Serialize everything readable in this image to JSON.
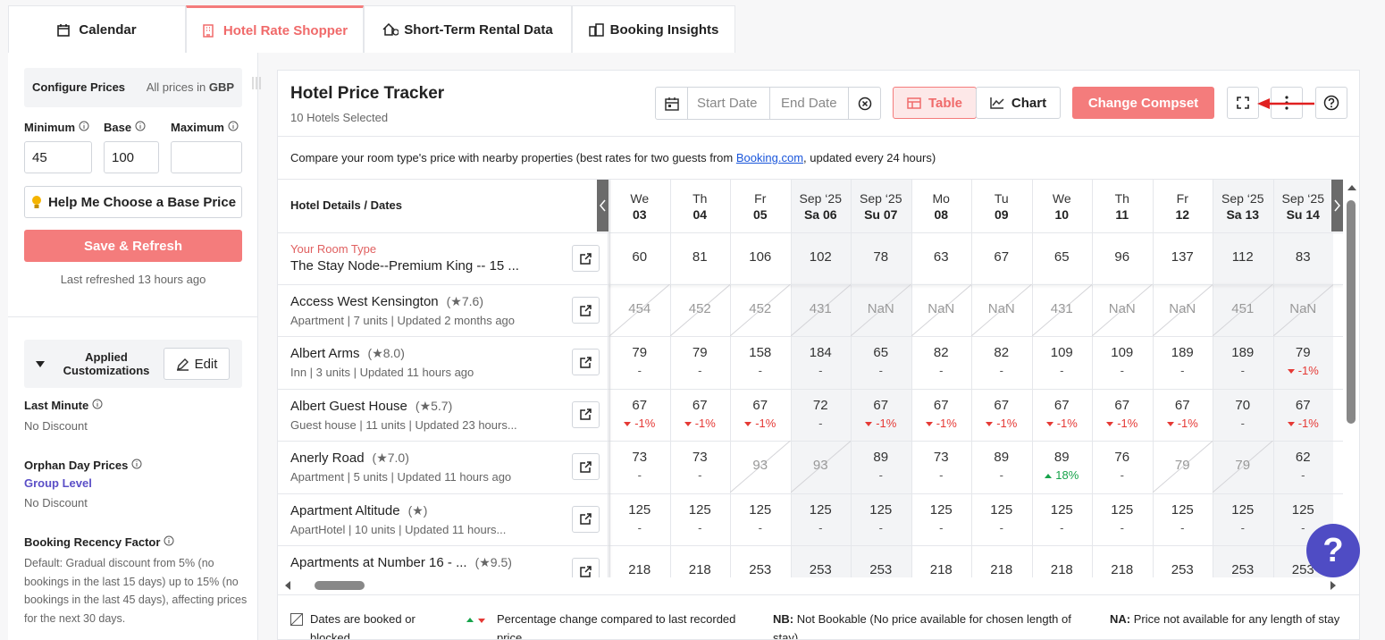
{
  "tabs": [
    "Calendar",
    "Hotel Rate Shopper",
    "Short-Term Rental Data",
    "Booking Insights"
  ],
  "sidebar": {
    "configure_title": "Configure Prices",
    "currency_prefix": "All prices in",
    "currency": "GBP",
    "fields": [
      {
        "label": "Minimum",
        "value": "45"
      },
      {
        "label": "Base",
        "value": "100"
      },
      {
        "label": "Maximum"
      }
    ],
    "help_button": "Help Me Choose a Base Price",
    "save_button": "Save & Refresh",
    "last_refreshed": "Last refreshed 13 hours ago",
    "customizations_title": "Applied Customizations",
    "edit_button": "Edit",
    "last_minute": {
      "title": "Last Minute",
      "value": "No Discount"
    },
    "orphan": {
      "title": "Orphan Day Prices",
      "level": "Group Level",
      "value": "No Discount"
    },
    "recency": {
      "title": "Booking Recency Factor",
      "text": "Default: Gradual discount from 5% (no bookings in the last 15 days) up to 15% (no bookings in the last 45 days), affecting prices for the next 30 days."
    }
  },
  "header": {
    "title": "Hotel Price Tracker",
    "subtitle": "10 Hotels Selected",
    "start_date": "Start Date",
    "end_date": "End Date",
    "table_button": "Table",
    "chart_button": "Chart",
    "compset_button": "Change Compset"
  },
  "description": {
    "before": "Compare your room type's price with nearby properties (best rates for two guests from",
    "link": "Booking.com",
    "after": ", updated every 24 hours)"
  },
  "table": {
    "corner": "Hotel Details / Dates",
    "columns": [
      {
        "top": "We",
        "bottom": "03",
        "weekend": false
      },
      {
        "top": "Th",
        "bottom": "04",
        "weekend": false
      },
      {
        "top": "Fr",
        "bottom": "05",
        "weekend": false
      },
      {
        "top": "Sep ‘25",
        "bottom": "Sa 06",
        "weekend": true
      },
      {
        "top": "Sep ‘25",
        "bottom": "Su 07",
        "weekend": true
      },
      {
        "top": "Mo",
        "bottom": "08",
        "weekend": false
      },
      {
        "top": "Tu",
        "bottom": "09",
        "weekend": false
      },
      {
        "top": "We",
        "bottom": "10",
        "weekend": false
      },
      {
        "top": "Th",
        "bottom": "11",
        "weekend": false
      },
      {
        "top": "Fr",
        "bottom": "12",
        "weekend": false
      },
      {
        "top": "Sep ‘25",
        "bottom": "Sa 13",
        "weekend": true
      },
      {
        "top": "Sep ‘25",
        "bottom": "Su 14",
        "weekend": true
      }
    ],
    "own": {
      "label": "Your Room Type",
      "name": "The Stay Node--Premium King -- 15 ...",
      "values": [
        "60",
        "81",
        "106",
        "102",
        "78",
        "63",
        "67",
        "65",
        "96",
        "137",
        "112",
        "83"
      ]
    },
    "hotels": [
      {
        "name": "Access West Kensington",
        "rating": "(★7.6)",
        "meta": "Apartment | 7 units | Updated 2 months ago",
        "cells": [
          {
            "value": "454",
            "booked": true
          },
          {
            "value": "452",
            "booked": true
          },
          {
            "value": "452",
            "booked": true
          },
          {
            "value": "431",
            "booked": true
          },
          {
            "value": "NaN",
            "booked": true
          },
          {
            "value": "NaN",
            "booked": true
          },
          {
            "value": "NaN",
            "booked": true
          },
          {
            "value": "431",
            "booked": true
          },
          {
            "value": "NaN",
            "booked": true
          },
          {
            "value": "NaN",
            "booked": true
          },
          {
            "value": "451",
            "booked": true
          },
          {
            "value": "NaN",
            "booked": true
          }
        ]
      },
      {
        "name": "Albert Arms",
        "rating": "(★8.0)",
        "meta": "Inn | 3 units | Updated 11 hours ago",
        "cells": [
          {
            "value": "79",
            "change": "-"
          },
          {
            "value": "79",
            "change": "-"
          },
          {
            "value": "158",
            "change": "-"
          },
          {
            "value": "184",
            "change": "-"
          },
          {
            "value": "65",
            "change": "-"
          },
          {
            "value": "82",
            "change": "-"
          },
          {
            "value": "82",
            "change": "-"
          },
          {
            "value": "109",
            "change": "-"
          },
          {
            "value": "109",
            "change": "-"
          },
          {
            "value": "189",
            "change": "-"
          },
          {
            "value": "189",
            "change": "-"
          },
          {
            "value": "79",
            "change": "-1%",
            "trend": "down"
          }
        ]
      },
      {
        "name": "Albert Guest House",
        "rating": "(★5.7)",
        "meta": "Guest house | 11 units | Updated 23 hours...",
        "cells": [
          {
            "value": "67",
            "change": "-1%",
            "trend": "down"
          },
          {
            "value": "67",
            "change": "-1%",
            "trend": "down"
          },
          {
            "value": "67",
            "change": "-1%",
            "trend": "down"
          },
          {
            "value": "72",
            "change": "-"
          },
          {
            "value": "67",
            "change": "-1%",
            "trend": "down"
          },
          {
            "value": "67",
            "change": "-1%",
            "trend": "down"
          },
          {
            "value": "67",
            "change": "-1%",
            "trend": "down"
          },
          {
            "value": "67",
            "change": "-1%",
            "trend": "down"
          },
          {
            "value": "67",
            "change": "-1%",
            "trend": "down"
          },
          {
            "value": "67",
            "change": "-1%",
            "trend": "down"
          },
          {
            "value": "70",
            "change": "-"
          },
          {
            "value": "67",
            "change": "-1%",
            "trend": "down"
          }
        ]
      },
      {
        "name": "Anerly Road",
        "rating": "(★7.0)",
        "meta": "Apartment | 5 units | Updated 11 hours ago",
        "cells": [
          {
            "value": "73",
            "change": "-"
          },
          {
            "value": "73",
            "change": "-"
          },
          {
            "value": "93",
            "booked": true
          },
          {
            "value": "93",
            "booked": true
          },
          {
            "value": "89",
            "change": "-"
          },
          {
            "value": "73",
            "change": "-"
          },
          {
            "value": "89",
            "change": "-"
          },
          {
            "value": "89",
            "change": "18%",
            "trend": "up"
          },
          {
            "value": "76",
            "change": "-"
          },
          {
            "value": "79",
            "booked": true
          },
          {
            "value": "79",
            "booked": true
          },
          {
            "value": "62",
            "change": "-"
          }
        ]
      },
      {
        "name": "Apartment Altitude",
        "rating": "(★)",
        "meta": "ApartHotel | 10 units | Updated 11 hours...",
        "cells": [
          {
            "value": "125",
            "change": "-"
          },
          {
            "value": "125",
            "change": "-"
          },
          {
            "value": "125",
            "change": "-"
          },
          {
            "value": "125",
            "change": "-"
          },
          {
            "value": "125",
            "change": "-"
          },
          {
            "value": "125",
            "change": "-"
          },
          {
            "value": "125",
            "change": "-"
          },
          {
            "value": "125",
            "change": "-"
          },
          {
            "value": "125",
            "change": "-"
          },
          {
            "value": "125",
            "change": "-"
          },
          {
            "value": "125",
            "change": "-"
          },
          {
            "value": "125",
            "change": "-"
          }
        ]
      },
      {
        "name": "Apartments at Number 16 - ...",
        "rating": "(★9.5)",
        "meta": "",
        "cells": [
          {
            "value": "218"
          },
          {
            "value": "218"
          },
          {
            "value": "253"
          },
          {
            "value": "253"
          },
          {
            "value": "253"
          },
          {
            "value": "218"
          },
          {
            "value": "218"
          },
          {
            "value": "218"
          },
          {
            "value": "218"
          },
          {
            "value": "253"
          },
          {
            "value": "253"
          },
          {
            "value": "253"
          }
        ]
      }
    ]
  },
  "legend": {
    "booked": "Dates are booked or blocked",
    "change": "Percentage change compared to last recorded price",
    "nb_key": "NB:",
    "nb_text": "Not Bookable (No price available for chosen length of stay)",
    "na_key": "NA:",
    "na_text": "Price not available for any length of stay"
  },
  "help_fab": "?"
}
